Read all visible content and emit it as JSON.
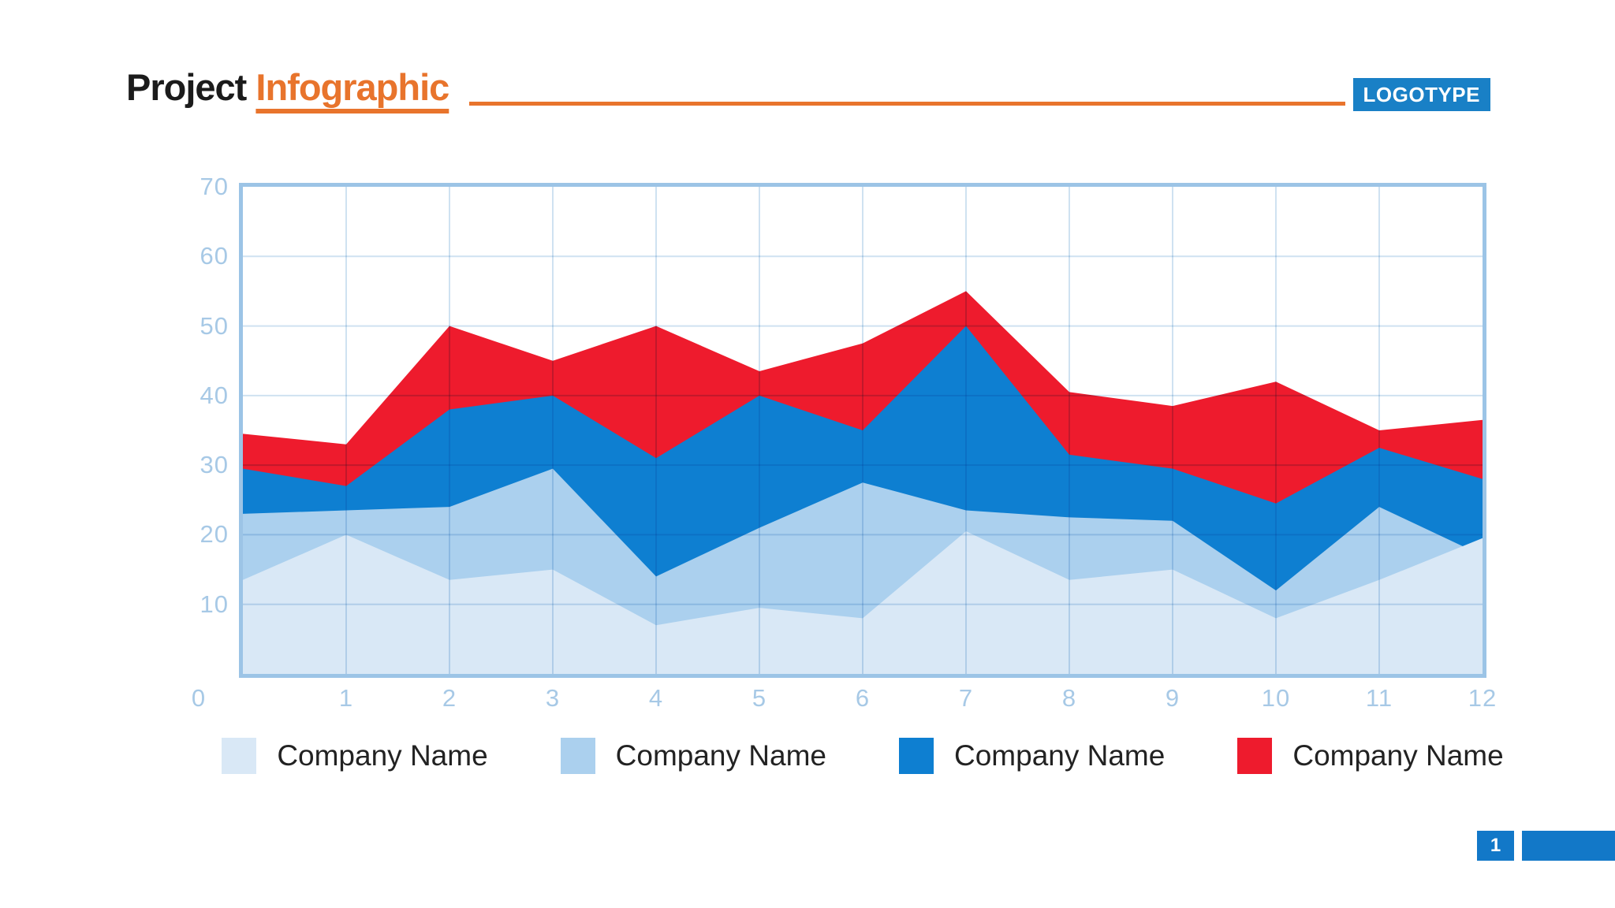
{
  "header": {
    "title_black": "Project",
    "title_orange": "Infographic",
    "logotype": "LOGOTYPE",
    "accent_orange": "#e8742c",
    "logotype_bg": "#1980c6"
  },
  "chart_data": {
    "type": "area",
    "variant": "overlapping-areas, later series drawn behind; pale series in front",
    "x": [
      0,
      1,
      2,
      3,
      4,
      5,
      6,
      7,
      8,
      9,
      10,
      11,
      12
    ],
    "series": [
      {
        "name": "Company Name",
        "color": "#d9e8f6",
        "values": [
          13.5,
          20,
          13.5,
          15,
          7,
          9.5,
          8,
          20.5,
          13.5,
          15,
          8,
          13.5,
          19.5
        ]
      },
      {
        "name": "Company Name",
        "color": "#abd0ee",
        "values": [
          23,
          23.5,
          24,
          29.5,
          14,
          21,
          27.5,
          23.5,
          22.5,
          22,
          12,
          24,
          17
        ]
      },
      {
        "name": "Company Name",
        "color": "#0e7fd1",
        "values": [
          29.5,
          27,
          38,
          40,
          31,
          40,
          35,
          50,
          31.5,
          29.5,
          24.5,
          32.5,
          28
        ]
      },
      {
        "name": "Company Name",
        "color": "#ee1b2d",
        "values": [
          34.5,
          33,
          50,
          45,
          50,
          43.5,
          47.5,
          55,
          40.5,
          38.5,
          42,
          35,
          36.5
        ]
      }
    ],
    "xlabel": "",
    "ylabel": "",
    "ylim": [
      0,
      70
    ],
    "xlim": [
      0,
      12
    ],
    "yticks": [
      10,
      20,
      30,
      40,
      50,
      60,
      70
    ],
    "xticks": [
      0,
      1,
      2,
      3,
      4,
      5,
      6,
      7,
      8,
      9,
      10,
      11,
      12
    ],
    "grid": true,
    "grid_color": "#cfe2f1",
    "border_color": "#9cc4e6",
    "axis_text_color": "#a7c9e6",
    "legend_position": "bottom"
  },
  "legend": {
    "items": [
      {
        "label": "Company Name",
        "color": "#d9e8f6"
      },
      {
        "label": "Company Name",
        "color": "#abd0ee"
      },
      {
        "label": "Company Name",
        "color": "#0e7fd1"
      },
      {
        "label": "Company Name",
        "color": "#ee1b2d"
      }
    ]
  },
  "footer": {
    "page_number": "1",
    "bar_color": "#1278c8"
  }
}
